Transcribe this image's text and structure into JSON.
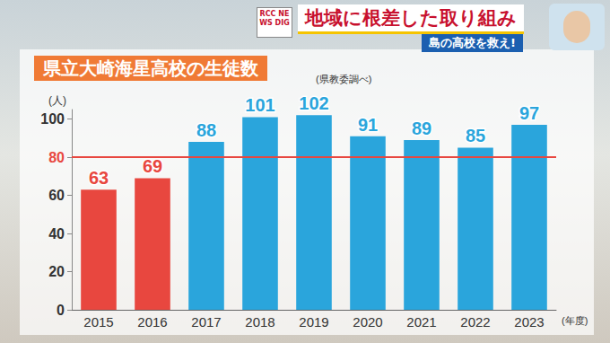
{
  "header": {
    "logo": "RCC NEWS DIG",
    "headline": "地域に根差した取り組み",
    "subheadline": "島の高校を救え!"
  },
  "chart_data": {
    "type": "bar",
    "title": "県立大崎海星高校の生徒数",
    "subtitle": "(県教委調べ)",
    "y_label": "(人)",
    "x_label": "(年度)",
    "categories": [
      "2015",
      "2016",
      "2017",
      "2018",
      "2019",
      "2020",
      "2021",
      "2022",
      "2023"
    ],
    "values": [
      63,
      69,
      88,
      101,
      102,
      91,
      89,
      85,
      97
    ],
    "colors": [
      "#e8473f",
      "#e8473f",
      "#2aa5dc",
      "#2aa5dc",
      "#2aa5dc",
      "#2aa5dc",
      "#2aa5dc",
      "#2aa5dc",
      "#2aa5dc"
    ],
    "ylim": [
      0,
      105
    ],
    "yticks": [
      0,
      20,
      40,
      60,
      80,
      100
    ],
    "reference_line": 80,
    "grid": false,
    "data_labels": true
  }
}
